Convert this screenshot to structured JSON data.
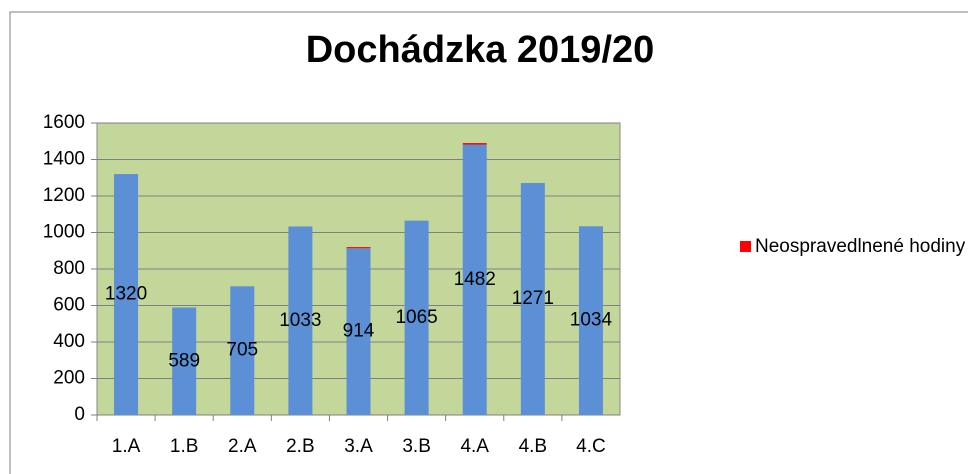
{
  "chart_data": {
    "type": "bar",
    "stacked": true,
    "title": "Dochádzka 2019/20",
    "categories": [
      "1.A",
      "1.B",
      "2.A",
      "2.B",
      "3.A",
      "3.B",
      "4.A",
      "4.B",
      "4.C"
    ],
    "series": [
      {
        "color": "#5b8fd6",
        "values": [
          1320,
          589,
          705,
          1033,
          914,
          1065,
          1482,
          1271,
          1034
        ],
        "data_labels": true
      },
      {
        "name": "Neospravedlnené hodiny",
        "color": "#ff0000",
        "values": [
          0,
          0,
          0,
          0,
          6,
          0,
          8,
          0,
          0
        ]
      }
    ],
    "ylim": [
      0,
      1600
    ],
    "yticks": [
      0,
      200,
      400,
      600,
      800,
      1000,
      1200,
      1400,
      1600
    ],
    "grid": true,
    "plot_background": "#c4d79b",
    "legend": "right"
  }
}
